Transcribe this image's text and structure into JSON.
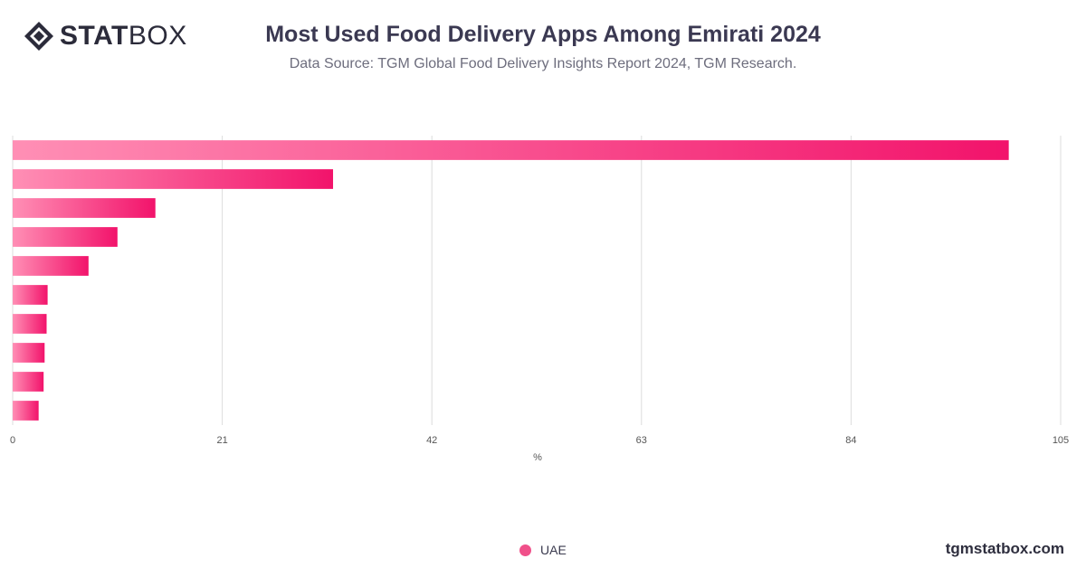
{
  "header": {
    "logo_stat": "STAT",
    "logo_box": "BOX",
    "title": "Most Used Food Delivery Apps Among Emirati 2024",
    "subtitle": "Data Source: TGM Global Food Delivery Insights Report 2024, TGM Research."
  },
  "footer": {
    "watermark": "tgmstatbox.com"
  },
  "colors": {
    "bar_start": "#ff8fb5",
    "bar_end": "#f2136b",
    "grid": "#dcdcdc",
    "legend": "#f0508a"
  },
  "chart_data": {
    "type": "bar",
    "orientation": "horizontal",
    "title": "Most Used Food Delivery Apps Among Emirati 2024",
    "xlabel": "%",
    "ylabel": "",
    "xlim": [
      0,
      105
    ],
    "xticks": [
      0,
      21,
      42,
      63,
      84,
      105
    ],
    "grid": true,
    "legend_position": "bottom-center",
    "series": [
      {
        "name": "UAE",
        "values": [
          99.8,
          32.1,
          14.3,
          10.5,
          7.6,
          3.5,
          3.4,
          3.2,
          3.1,
          2.6
        ]
      }
    ]
  }
}
